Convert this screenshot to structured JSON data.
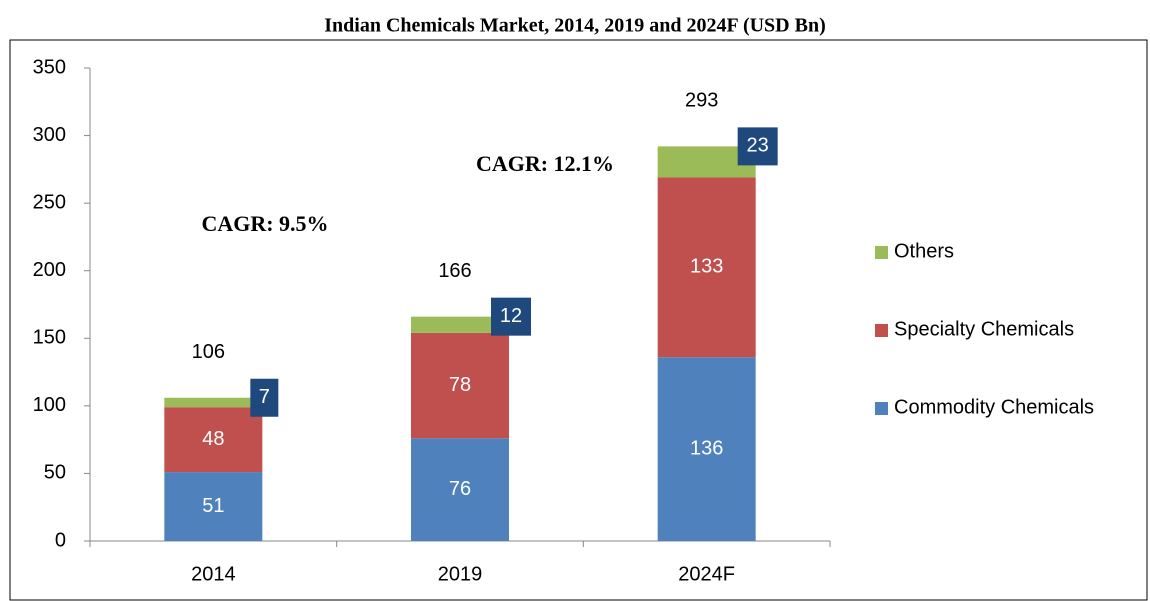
{
  "chart_data": {
    "type": "stacked_bar",
    "title": "Indian Chemicals Market, 2014, 2019 and 2024F (USD Bn)",
    "categories": [
      "2014",
      "2019",
      "2024F"
    ],
    "series": [
      {
        "name": "Commodity Chemicals",
        "color": "#4f81bd",
        "values": [
          51,
          76,
          136
        ]
      },
      {
        "name": "Specialty Chemicals",
        "color": "#c0504d",
        "values": [
          48,
          78,
          133
        ]
      },
      {
        "name": "Others",
        "color": "#9bbb59",
        "values": [
          7,
          12,
          23
        ]
      }
    ],
    "totals": [
      106,
      166,
      293
    ],
    "annotations": [
      "CAGR: 9.5%",
      "CAGR: 12.1%"
    ],
    "ylim": [
      0,
      350
    ],
    "yticks": [
      0,
      50,
      100,
      150,
      200,
      250,
      300,
      350
    ],
    "legend": "right"
  }
}
